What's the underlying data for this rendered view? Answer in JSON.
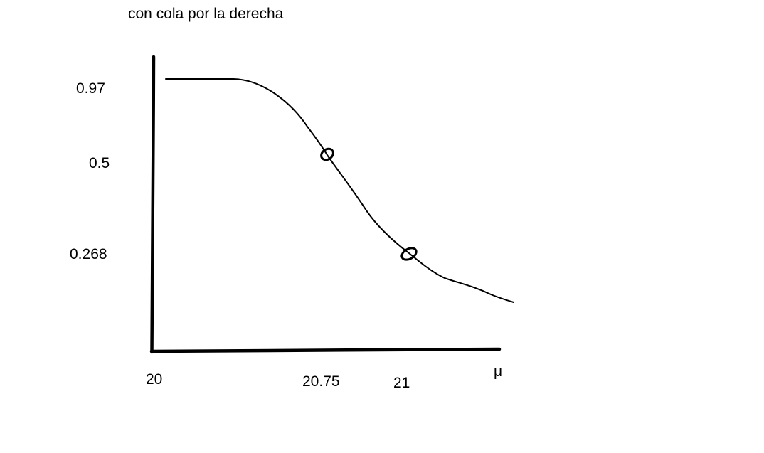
{
  "chart_data": {
    "type": "line",
    "title": "con cola por la derecha",
    "xlabel": "μ",
    "ylabel": "",
    "x_ticks": [
      "20",
      "20.75",
      "21"
    ],
    "y_ticks": [
      "0.97",
      "0.5",
      "0.268"
    ],
    "series": [
      {
        "marked_points": [
          {
            "x": 20.75,
            "y": 0.5
          },
          {
            "x": 21,
            "y": 0.268
          }
        ]
      }
    ],
    "grid": false,
    "legend": "none"
  },
  "colors": {
    "ink": "#000000",
    "background": "#ffffff"
  }
}
